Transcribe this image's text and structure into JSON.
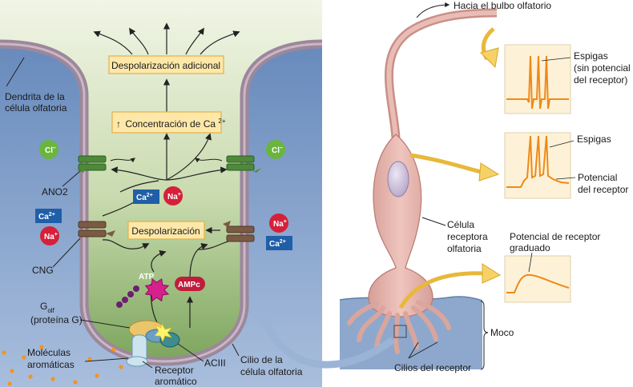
{
  "colors": {
    "mucus": "#6f8fbc",
    "cytoplasm_top": "#eef3e3",
    "cytoplasm_bottom": "#86ad69",
    "membrane": "#a58fa3",
    "neuron": "#e3b2ab",
    "neuron_edge": "#b87a72",
    "box_fill": "#fde8a9",
    "box_edge": "#e3b04a",
    "ca_blue": "#1f5fa8",
    "na_red": "#d5203a",
    "cl_green": "#6ab53e",
    "camp_red": "#bf1d3b",
    "atp_star": "#d8208d",
    "trace_orange": "#ef8a17",
    "odorant_orange": "#f0961e",
    "highlight_arrow": "#f6d266"
  },
  "left_panel": {
    "boxes": {
      "further_depolarization": "Despolarización adicional",
      "ca_concentration": "Concentración de Ca",
      "ca_concentration_sup": "2+",
      "ca_concentration_arrow": "↑",
      "depolarization": "Despolarización"
    },
    "labels": {
      "dendrite_line1": "Dendrita de la",
      "dendrite_line2": "célula olfatoria",
      "ano2": "ANO2",
      "cng": "CNG",
      "golf_line1_main": "G",
      "golf_line1_sub": "olf",
      "golf_line2": "(proteína G)",
      "odorants_line1": "Moléculas",
      "odorants_line2": "aromáticas",
      "receptor_line1": "Receptor",
      "receptor_line2": "aromático",
      "aciii": "ACIII",
      "cilium_line1": "Cilio de la",
      "cilium_line2": "célula olfatoria"
    },
    "ions": {
      "cl": "Cl",
      "cl_sup": "–",
      "ca": "Ca",
      "ca_sup": "2+",
      "na": "Na",
      "na_sup": "+",
      "atp": "ATP",
      "camp": "AMPc"
    }
  },
  "right_panel": {
    "labels": {
      "to_bulb": "Hacia el bulbo olfatorio",
      "spikes_no_potential_l1": "Espigas",
      "spikes_no_potential_l2": "(sin potencial",
      "spikes_no_potential_l3": "del receptor)",
      "spikes": "Espigas",
      "receptor_potential_l1": "Potencial",
      "receptor_potential_l2": "del receptor",
      "cell_l1": "Célula",
      "cell_l2": "receptora",
      "cell_l3": "olfatoria",
      "graded_l1": "Potencial de receptor",
      "graded_l2": "graduado",
      "mucus": "Moco",
      "receptor_cilia": "Cilios del receptor"
    }
  }
}
